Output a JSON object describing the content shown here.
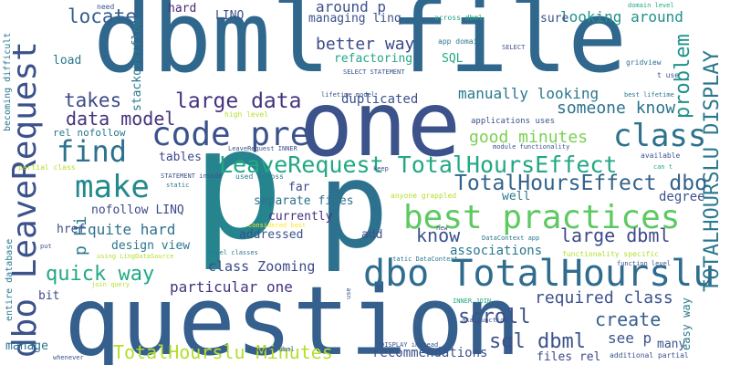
{
  "words": [
    {
      "text": "dbml file",
      "color": "#30678d"
    },
    {
      "text": "one",
      "color": "#3b528b"
    },
    {
      "text": "p",
      "color": "#25848e"
    },
    {
      "text": "p",
      "color": "#2c728e"
    },
    {
      "text": "question",
      "color": "#355f8d"
    },
    {
      "text": "dbo LeaveRequest",
      "color": "#3b528b"
    },
    {
      "text": "dbo TotalHourslu",
      "color": "#2f6c8e"
    },
    {
      "text": "best practices",
      "color": "#5ec962"
    },
    {
      "text": "LeaveRequest TotalHoursEffect",
      "color": "#22a884"
    },
    {
      "text": "code pre",
      "color": "#3b528b"
    },
    {
      "text": "find",
      "color": "#2c728e"
    },
    {
      "text": "make",
      "color": "#23898e"
    },
    {
      "text": "class",
      "color": "#2c728e"
    },
    {
      "text": "TOTALHOURSLU DISPLAY",
      "color": "#2a788e"
    },
    {
      "text": "TotalHoursEffect dbo",
      "color": "#33638d"
    },
    {
      "text": "problem",
      "color": "#21918c"
    },
    {
      "text": "large data",
      "color": "#46327e"
    },
    {
      "text": "data model",
      "color": "#46327e"
    },
    {
      "text": "locate",
      "color": "#355f8d"
    },
    {
      "text": "takes",
      "color": "#3e4a89"
    },
    {
      "text": "quick way",
      "color": "#22a884"
    },
    {
      "text": "sql dbml",
      "color": "#3b528b"
    },
    {
      "text": "scroll",
      "color": "#3b528b"
    },
    {
      "text": "create",
      "color": "#355f8d"
    },
    {
      "text": "TotalHourslu Minutes",
      "color": "#b5de2b"
    },
    {
      "text": "someone know",
      "color": "#2c728e"
    },
    {
      "text": "good minutes",
      "color": "#7ad151"
    },
    {
      "text": "large dbml",
      "color": "#3e4a89"
    },
    {
      "text": "know",
      "color": "#3b528b"
    },
    {
      "text": "manually looking",
      "color": "#2a788e"
    },
    {
      "text": "better way",
      "color": "#3e4a89"
    },
    {
      "text": "quite hard",
      "color": "#2c728e"
    },
    {
      "text": "class Zooming",
      "color": "#3e4a89"
    },
    {
      "text": "required class",
      "color": "#3b528b"
    },
    {
      "text": "particular one",
      "color": "#46327e"
    },
    {
      "text": "p Hi",
      "color": "#2a788e"
    },
    {
      "text": "see p",
      "color": "#3b528b"
    },
    {
      "text": "looking around",
      "color": "#21918c"
    },
    {
      "text": "around p",
      "color": "#3b528b"
    },
    {
      "text": "recommendations",
      "color": "#3b528b"
    },
    {
      "text": "design view",
      "color": "#2a788e"
    },
    {
      "text": "nofollow LINQ",
      "color": "#3e4a89"
    },
    {
      "text": "associations",
      "color": "#2a788e"
    },
    {
      "text": "duplicated",
      "color": "#3b528b"
    },
    {
      "text": "refactoring",
      "color": "#22a884"
    },
    {
      "text": "managing linq",
      "color": "#3b528b"
    },
    {
      "text": "separate files",
      "color": "#2c728e"
    },
    {
      "text": "addressed",
      "color": "#3b528b"
    },
    {
      "text": "currently",
      "color": "#46327e"
    },
    {
      "text": "stackoverflow",
      "color": "#2a788e"
    },
    {
      "text": "files rel",
      "color": "#3e4a89"
    },
    {
      "text": "degree",
      "color": "#3b528b"
    },
    {
      "text": "easy way",
      "color": "#2a788e"
    },
    {
      "text": "LINQ",
      "color": "#3b528b"
    },
    {
      "text": "hard",
      "color": "#482878"
    },
    {
      "text": "sure",
      "color": "#3b528b"
    },
    {
      "text": "SQL",
      "color": "#22a884"
    },
    {
      "text": "load",
      "color": "#2a788e"
    },
    {
      "text": "tables",
      "color": "#3e4a89"
    },
    {
      "text": "href",
      "color": "#3e4a89"
    },
    {
      "text": "far",
      "color": "#3e4a89"
    },
    {
      "text": "add",
      "color": "#3b528b"
    },
    {
      "text": "well",
      "color": "#2a788e"
    },
    {
      "text": "bit",
      "color": "#3e4a89"
    },
    {
      "text": "manage",
      "color": "#2c728e"
    },
    {
      "text": "many",
      "color": "#3b528b"
    },
    {
      "text": "rel nofollow",
      "color": "#2a788e"
    },
    {
      "text": "becoming difficult",
      "color": "#2a788e"
    },
    {
      "text": "entire database",
      "color": "#2a788e"
    },
    {
      "text": "need",
      "color": "#3b528b"
    },
    {
      "text": "domain level",
      "color": "#22a884"
    },
    {
      "text": "across dbml",
      "color": "#22a884"
    },
    {
      "text": "app domain",
      "color": "#2a788e"
    },
    {
      "text": "SELECT",
      "color": "#3b528b"
    },
    {
      "text": "gridview",
      "color": "#2c728e"
    },
    {
      "text": "t use",
      "color": "#3b528b"
    },
    {
      "text": "SELECT STATEMENT",
      "color": "#3b528b"
    },
    {
      "text": "lifetime model",
      "color": "#3b528b"
    },
    {
      "text": "best lifetime",
      "color": "#2a788e"
    },
    {
      "text": "high level",
      "color": "#b5de2b"
    },
    {
      "text": "applications uses",
      "color": "#3b528b"
    },
    {
      "text": "module functionality",
      "color": "#3b528b"
    },
    {
      "text": "LeaveRequest INNER",
      "color": "#3b528b"
    },
    {
      "text": "partial class",
      "color": "#b5de2b"
    },
    {
      "text": "available",
      "color": "#3b528b"
    },
    {
      "text": "can t",
      "color": "#22a884"
    },
    {
      "text": "STATEMENT inside",
      "color": "#3b528b"
    },
    {
      "text": "used across",
      "color": "#2a788e"
    },
    {
      "text": "keep",
      "color": "#3b528b"
    },
    {
      "text": "static",
      "color": "#2a788e"
    },
    {
      "text": "considered best",
      "color": "#fde725"
    },
    {
      "text": "anyone grappled",
      "color": "#b5de2b"
    },
    {
      "text": "put",
      "color": "#3b528b"
    },
    {
      "text": "new",
      "color": "#3b528b"
    },
    {
      "text": "DataContext app",
      "color": "#2a788e"
    },
    {
      "text": "level classes",
      "color": "#2a788e"
    },
    {
      "text": "functionality specific",
      "color": "#b5de2b"
    },
    {
      "text": "using LingDataSource",
      "color": "#b5de2b"
    },
    {
      "text": "static DataContext",
      "color": "#2a788e"
    },
    {
      "text": "function level",
      "color": "#3b528b"
    },
    {
      "text": "join query",
      "color": "#b5de2b"
    },
    {
      "text": "use",
      "color": "#3b528b"
    },
    {
      "text": "INNER JOIN",
      "color": "#22a884"
    },
    {
      "text": "aka function",
      "color": "#3b528b"
    },
    {
      "text": "DISPLAY instead",
      "color": "#3b528b"
    },
    {
      "text": "whenever",
      "color": "#3b528b"
    },
    {
      "text": "several dbml",
      "color": "#3b528b"
    },
    {
      "text": "additional partial",
      "color": "#3b528b"
    }
  ]
}
